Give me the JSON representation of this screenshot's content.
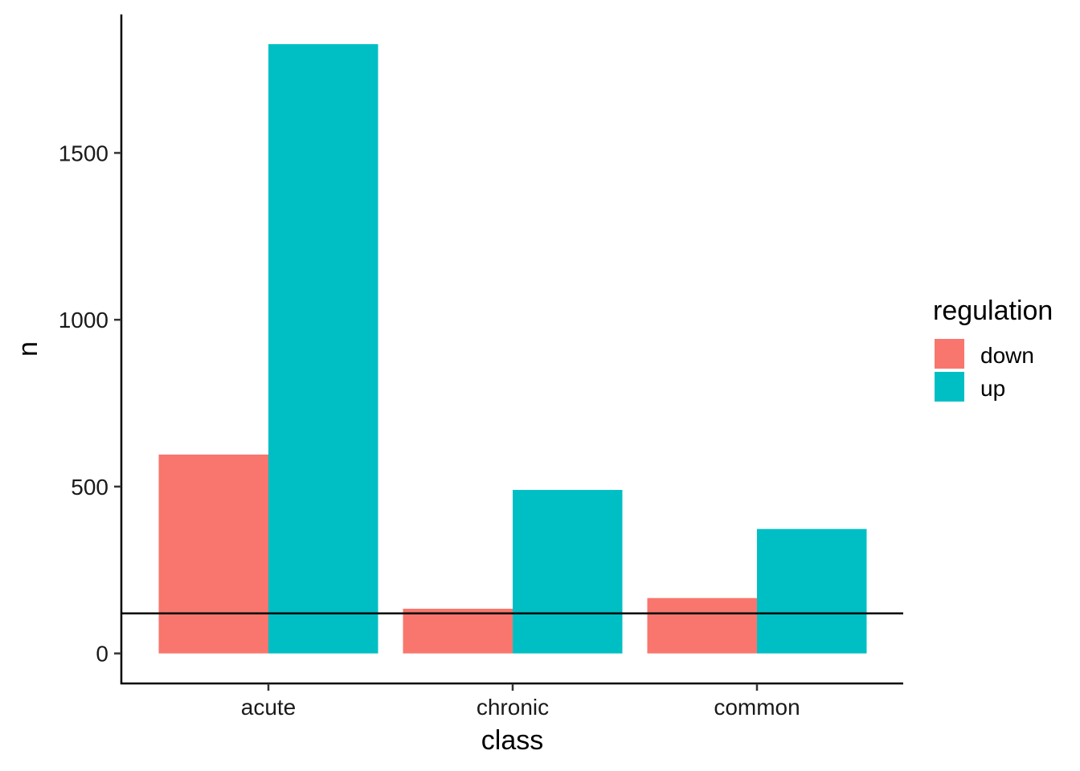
{
  "chart_data": {
    "type": "bar",
    "categories": [
      "acute",
      "chronic",
      "common"
    ],
    "series": [
      {
        "name": "down",
        "color": "#F8766D",
        "values": [
          596,
          134,
          166
        ]
      },
      {
        "name": "up",
        "color": "#00BFC4",
        "values": [
          1826,
          490,
          373
        ]
      }
    ],
    "xlabel": "class",
    "ylabel": "n",
    "ylim": [
      -90,
      1915
    ],
    "yticks": [
      0,
      500,
      1000,
      1500
    ],
    "ytick_labels": [
      "0",
      "500",
      "1000",
      "1500"
    ],
    "reference_line_y": 120,
    "legend": {
      "title": "regulation",
      "position": "right"
    },
    "grid": false
  }
}
